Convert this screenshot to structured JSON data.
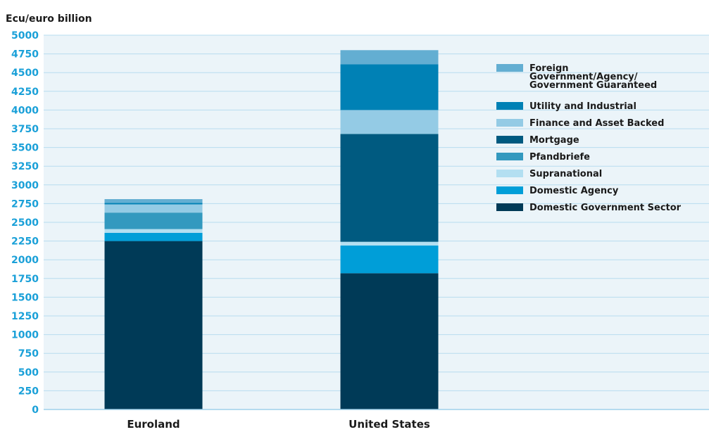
{
  "chart_data": {
    "type": "bar",
    "stacked": true,
    "ylabel": "Ecu/euro billion",
    "xlabel": "",
    "ylim": [
      0,
      5000
    ],
    "yticks": [
      0,
      250,
      500,
      750,
      1000,
      1250,
      1500,
      1750,
      2000,
      2250,
      2500,
      2750,
      3000,
      3250,
      3500,
      3750,
      4000,
      4250,
      4500,
      4750,
      5000
    ],
    "categories": [
      "Euroland",
      "United States"
    ],
    "grid": true,
    "legend_position": "top-right",
    "series": [
      {
        "name": "Domestic Government Sector",
        "color": "#003a57",
        "values": [
          2250,
          1820
        ]
      },
      {
        "name": "Domestic Agency",
        "color": "#009ed8",
        "values": [
          110,
          370
        ]
      },
      {
        "name": "Supranational",
        "color": "#b3dff1",
        "values": [
          50,
          50
        ]
      },
      {
        "name": "Pfandbriefe",
        "color": "#3399bf",
        "values": [
          220,
          0
        ]
      },
      {
        "name": "Mortgage",
        "color": "#005a80",
        "values": [
          0,
          1440
        ]
      },
      {
        "name": "Finance and Asset Backed",
        "color": "#94cbe5",
        "values": [
          110,
          320
        ]
      },
      {
        "name": "Utility and Industrial",
        "color": "#0081b5",
        "values": [
          20,
          610
        ]
      },
      {
        "name": "Foreign Government/Agency/ Government Guaranteed",
        "color": "#63aed2",
        "values": [
          50,
          190
        ]
      }
    ]
  }
}
